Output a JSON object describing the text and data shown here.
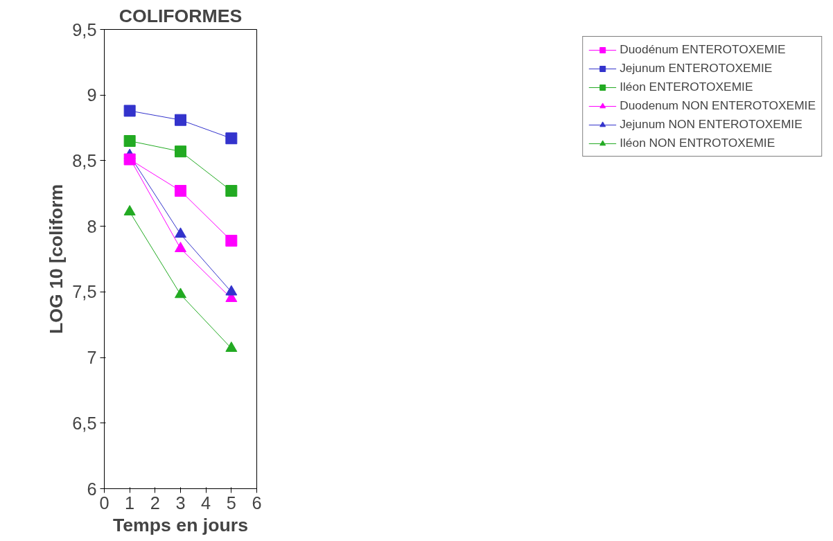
{
  "chart_data": {
    "type": "line",
    "title": "COLIFORMES",
    "xlabel": "Temps en jours",
    "ylabel": "LOG 10 [coliform",
    "x": [
      1,
      3,
      5
    ],
    "series": [
      {
        "name": "Duodénum ENTEROTOXEMIE",
        "color": "#ff00ff",
        "marker": "square",
        "values": [
          8.51,
          8.27,
          7.89
        ]
      },
      {
        "name": "Jejunum ENTEROTOXEMIE",
        "color": "#3333cc",
        "marker": "square",
        "values": [
          8.88,
          8.81,
          8.67
        ]
      },
      {
        "name": "Iléon ENTEROTOXEMIE",
        "color": "#22aa22",
        "marker": "square",
        "values": [
          8.65,
          8.57,
          8.27
        ]
      },
      {
        "name": "Duodenum NON ENTEROTOXEMIE",
        "color": "#ff00ff",
        "marker": "triangle",
        "values": [
          8.52,
          7.83,
          7.45
        ]
      },
      {
        "name": "Jejunum NON ENTEROTOXEMIE",
        "color": "#3333cc",
        "marker": "triangle",
        "values": [
          8.54,
          7.94,
          7.5
        ]
      },
      {
        "name": "Iléon NON ENTROTOXEMIE",
        "color": "#22aa22",
        "marker": "triangle",
        "values": [
          8.11,
          7.48,
          7.07
        ]
      }
    ],
    "xlim": [
      0,
      6
    ],
    "xticks": [
      0,
      1,
      2,
      3,
      4,
      5,
      6
    ],
    "ylim": [
      6,
      9.5
    ],
    "yticks": [
      6,
      {
        "value": 6.5,
        "label": "6,5"
      },
      7,
      {
        "value": 7.5,
        "label": "7,5"
      },
      8,
      {
        "value": 8.5,
        "label": "8,5"
      },
      9,
      {
        "value": 9.5,
        "label": "9,5"
      }
    ],
    "grid": false,
    "legend": "right",
    "line_style": "solid"
  }
}
